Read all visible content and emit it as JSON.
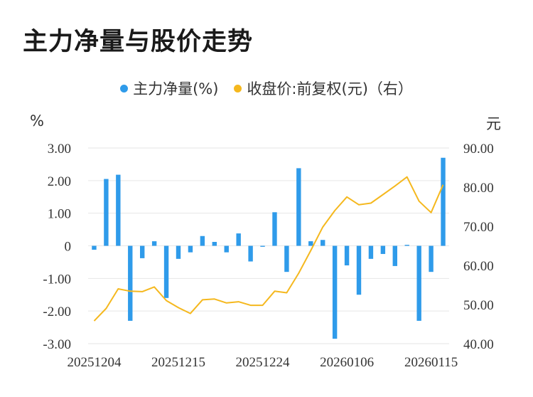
{
  "title": "主力净量与股价走势",
  "legend": {
    "bar_label": "主力净量(%)",
    "line_label": "收盘价:前复权(元)（右）"
  },
  "units": {
    "left": "%",
    "right": "元"
  },
  "colors": {
    "bar": "#2F9BEA",
    "line": "#F5B81E",
    "grid": "#e6e6e6"
  },
  "chart_data": {
    "type": "bar",
    "x_tick_labels": [
      "20251204",
      "20251215",
      "20251224",
      "20260106",
      "20260115"
    ],
    "x_tick_indices": [
      0,
      7,
      14,
      21,
      28
    ],
    "left_axis": {
      "ylim": [
        -3,
        3
      ],
      "ticks": [
        "3.00",
        "2.00",
        "1.00",
        "0",
        "-1.00",
        "-2.00",
        "-3.00"
      ]
    },
    "right_axis": {
      "ylim": [
        40,
        90
      ],
      "ticks": [
        "90.00",
        "80.00",
        "70.00",
        "60.00",
        "50.00",
        "40.00"
      ]
    },
    "series": [
      {
        "name": "主力净量(%)",
        "type": "bar",
        "axis": "left",
        "values": [
          -0.12,
          2.05,
          2.18,
          -2.3,
          -0.38,
          0.14,
          -1.6,
          -0.4,
          -0.2,
          0.3,
          0.12,
          -0.2,
          0.38,
          -0.48,
          -0.03,
          1.03,
          -0.8,
          2.38,
          0.14,
          0.18,
          -2.85,
          -0.6,
          -1.5,
          -0.4,
          -0.25,
          -0.62,
          0.03,
          -2.3,
          -0.8,
          2.7
        ]
      },
      {
        "name": "收盘价:前复权(元)（右）",
        "type": "line",
        "axis": "right",
        "values": [
          45.8,
          49.0,
          54.0,
          53.4,
          53.3,
          54.5,
          51.0,
          49.2,
          47.7,
          51.2,
          51.4,
          50.4,
          50.7,
          49.8,
          49.8,
          53.4,
          53.0,
          58.0,
          63.8,
          69.8,
          74.0,
          77.5,
          75.5,
          75.9,
          78.1,
          80.3,
          82.6,
          76.4,
          73.5,
          80.6
        ]
      }
    ]
  }
}
